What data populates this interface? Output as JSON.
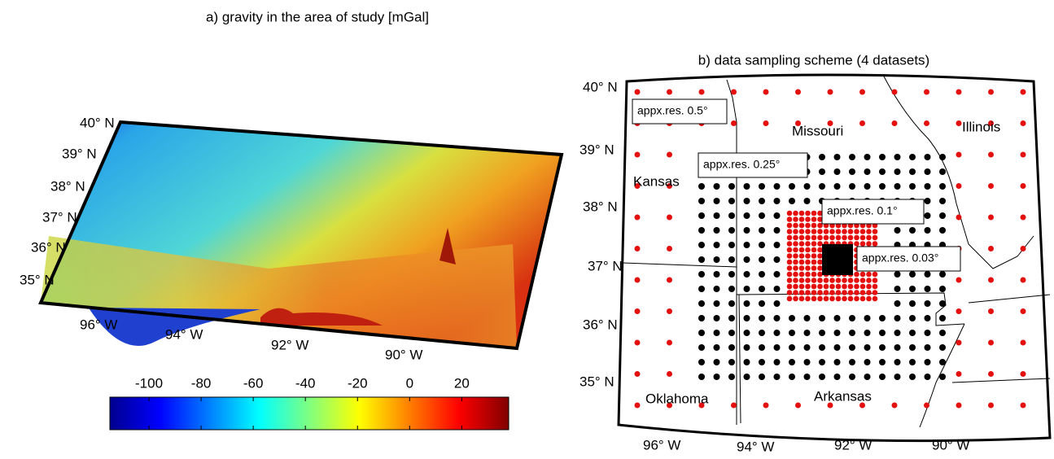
{
  "panel_a": {
    "title": "a) gravity in the area of study [mGal]",
    "lat_labels": [
      "40° N",
      "39° N",
      "38° N",
      "37° N",
      "36° N",
      "35° N"
    ],
    "lon_labels": [
      "96° W",
      "94° W",
      "92° W",
      "90° W"
    ]
  },
  "chart_data": {
    "type": "colorbar",
    "colormap": "jet",
    "xlim": [
      -115,
      38
    ],
    "xticks": [
      -100,
      -80,
      -60,
      -40,
      -20,
      0,
      20
    ]
  },
  "panel_b": {
    "title": "b) data sampling scheme (4 datasets)",
    "lat_labels": [
      "40° N",
      "39° N",
      "38° N",
      "37° N",
      "36° N",
      "35° N"
    ],
    "lon_labels": [
      "96° W",
      "94° W",
      "92° W",
      "90° W"
    ],
    "states": [
      "Missouri",
      "Illinois",
      "Kansas",
      "Oklahoma",
      "Arkansas"
    ],
    "resolution_labels": [
      "appx.res. 0.5°",
      "appx.res. 0.25°",
      "appx.res. 0.1°",
      "appx.res. 0.03°"
    ]
  }
}
